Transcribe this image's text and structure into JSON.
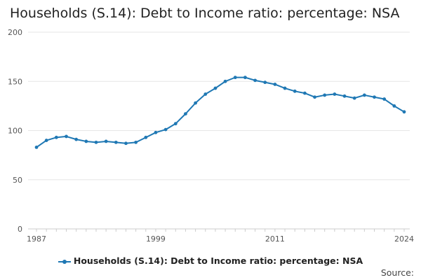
{
  "chart_data": {
    "type": "line",
    "title": "Households (S.14): Debt to Income ratio: percentage: NSA",
    "xlabel": "",
    "ylabel": "",
    "x": [
      1987,
      1988,
      1989,
      1990,
      1991,
      1992,
      1993,
      1994,
      1995,
      1996,
      1997,
      1998,
      1999,
      2000,
      2001,
      2002,
      2003,
      2004,
      2005,
      2006,
      2007,
      2008,
      2009,
      2010,
      2011,
      2012,
      2013,
      2014,
      2015,
      2016,
      2017,
      2018,
      2019,
      2020,
      2021,
      2022,
      2023,
      2024
    ],
    "x_tick_labels": [
      "1987",
      "1999",
      "2011",
      "2024"
    ],
    "x_tick_values": [
      1987,
      1999,
      2011,
      2024
    ],
    "ylim": [
      0,
      200
    ],
    "y_ticks": [
      0,
      50,
      100,
      150,
      200
    ],
    "grid": true,
    "legend_position": "bottom",
    "series": [
      {
        "name": "Households (S.14): Debt to Income ratio: percentage: NSA",
        "color": "#1f78b4",
        "values": [
          83,
          90,
          93,
          94,
          91,
          89,
          88,
          89,
          88,
          87,
          88,
          93,
          98,
          101,
          107,
          117,
          128,
          137,
          143,
          150,
          154,
          154,
          151,
          149,
          147,
          143,
          140,
          138,
          134,
          136,
          137,
          135,
          133,
          136,
          134,
          132,
          125,
          119
        ]
      }
    ]
  },
  "source_label": "Source:"
}
